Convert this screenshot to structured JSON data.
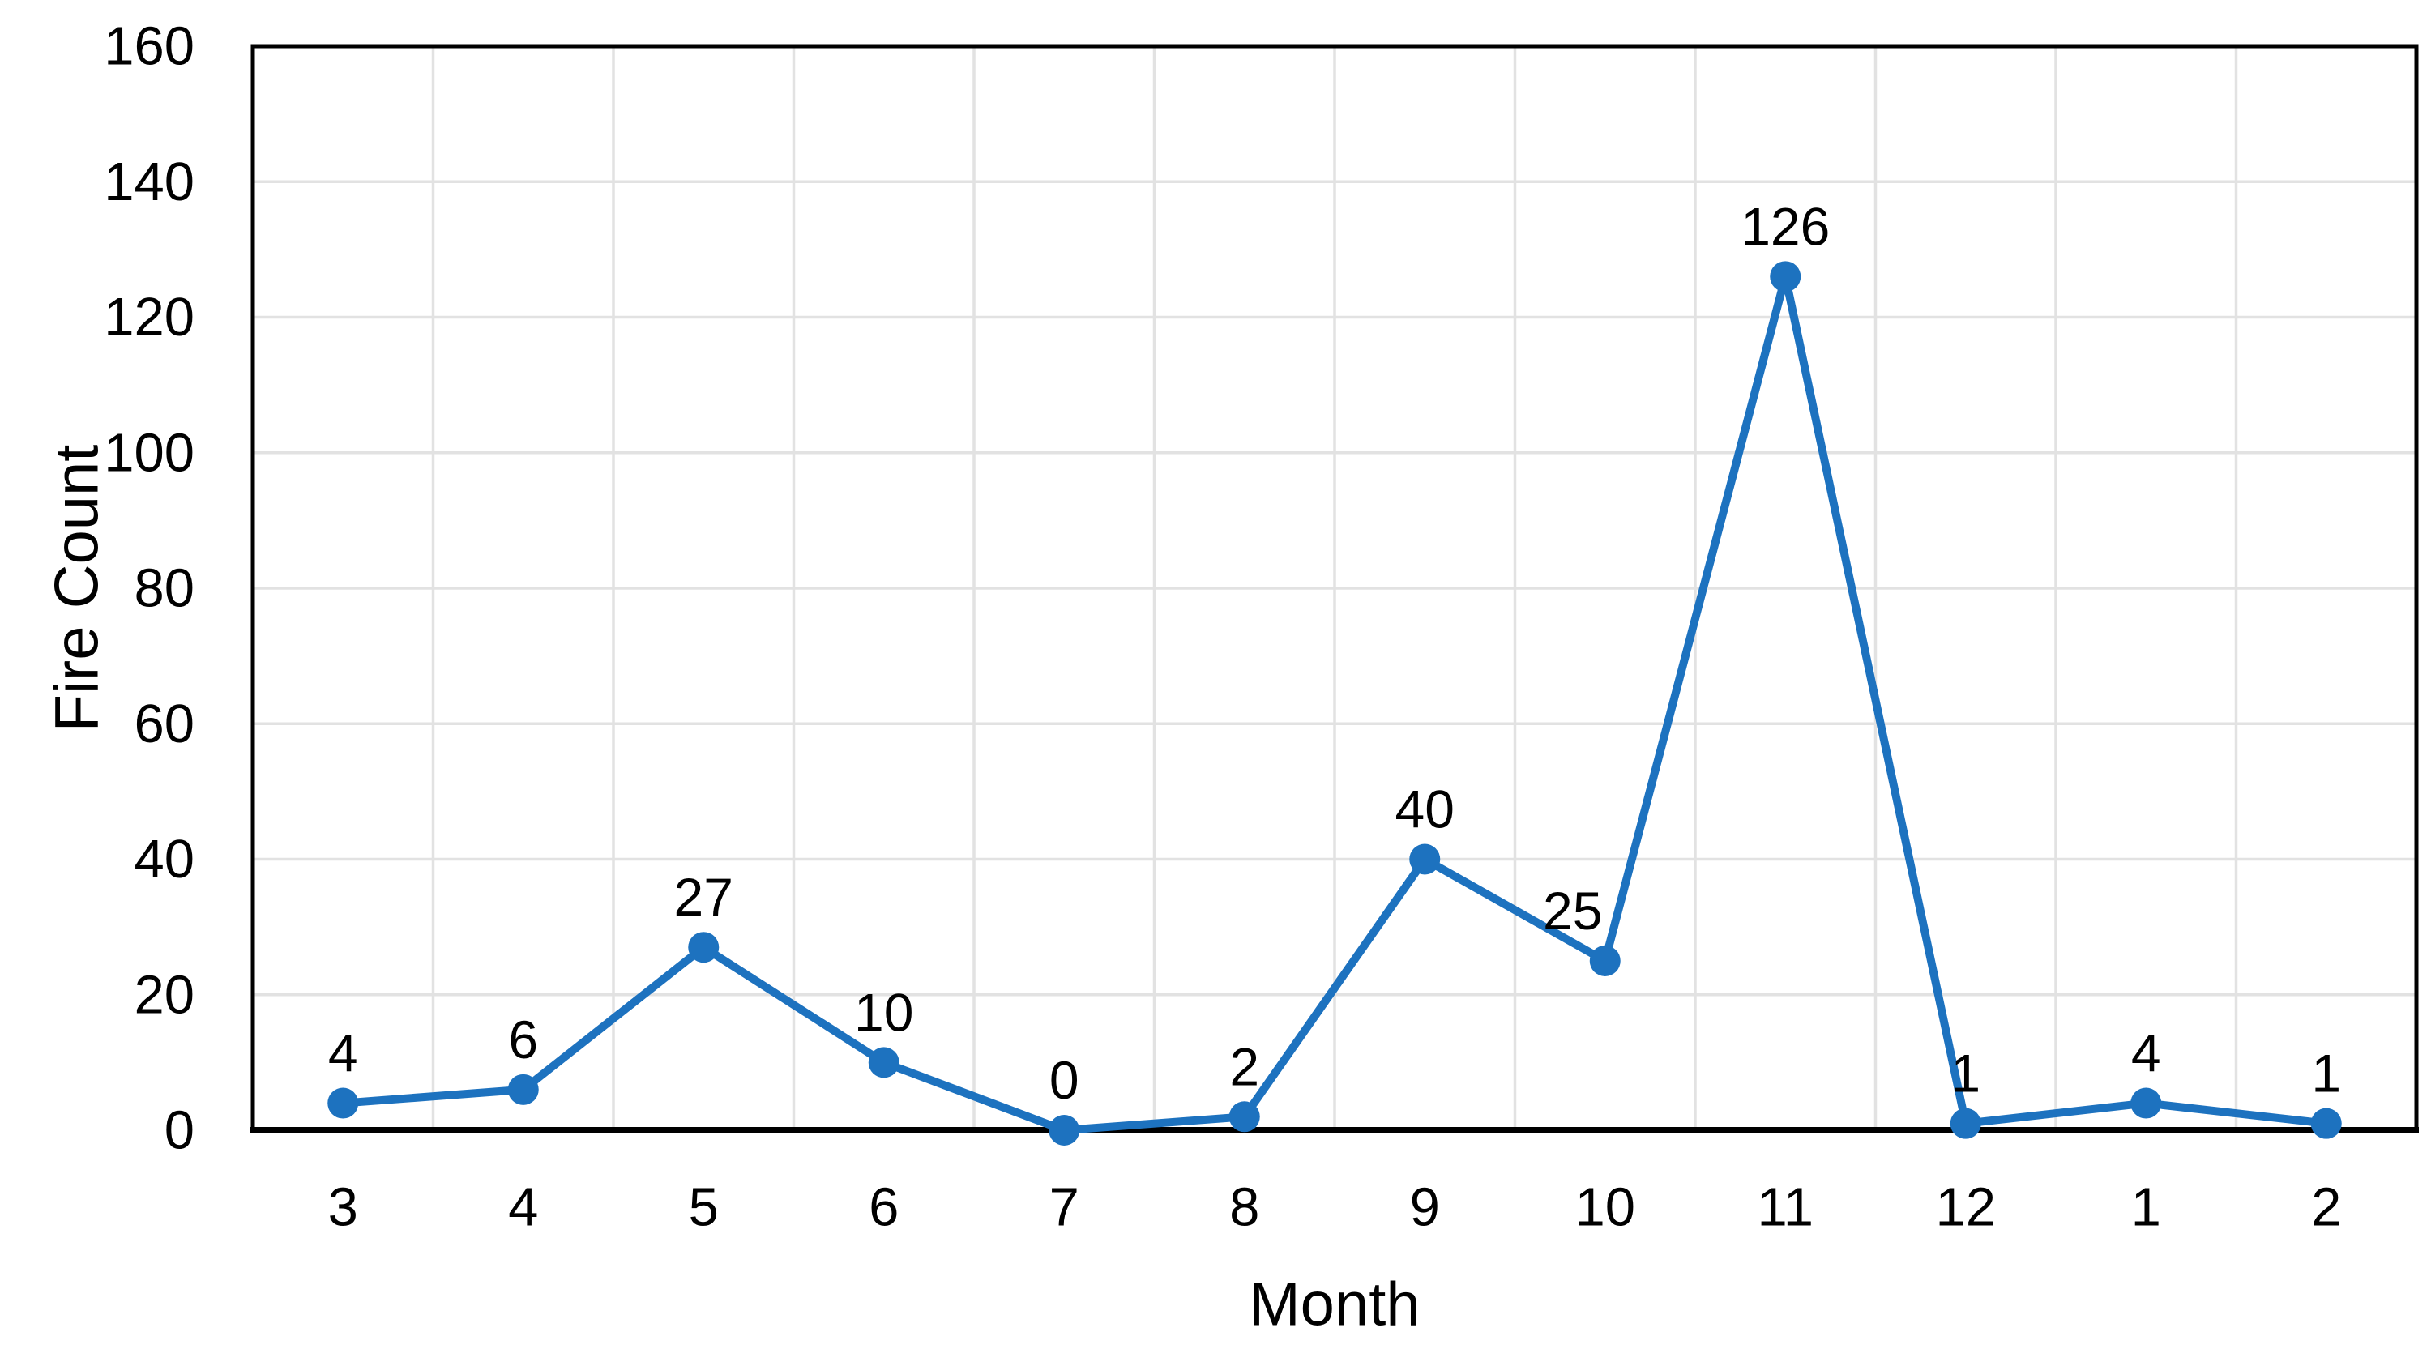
{
  "chart_data": {
    "type": "line",
    "title": "",
    "xlabel": "Month",
    "ylabel": "Fire Count",
    "categories": [
      "3",
      "4",
      "5",
      "6",
      "7",
      "8",
      "9",
      "10",
      "11",
      "12",
      "1",
      "2"
    ],
    "series": [
      {
        "name": "Fire Count",
        "values": [
          4,
          6,
          27,
          10,
          0,
          2,
          40,
          25,
          126,
          1,
          4,
          1
        ]
      }
    ],
    "data_labels": [
      "4",
      "6",
      "27",
      "10",
      "0",
      "2",
      "40",
      "25",
      "126",
      "1",
      "4",
      "1"
    ],
    "ylim": [
      0,
      160
    ],
    "ytick_step": 20,
    "yticks": [
      0,
      20,
      40,
      60,
      80,
      100,
      120,
      140,
      160
    ],
    "grid": true,
    "legend": "none",
    "colors": {
      "line": "#1D72BF",
      "marker": "#1D72BF",
      "gridline": "#E2E2E2",
      "axis": "#000000",
      "text": "#000000",
      "background": "#FFFFFF"
    },
    "layout_hints": {
      "marker_shape": "circle",
      "label_position": "above",
      "gridlines_vertical": "category-boundaries",
      "plot_border": "full-box",
      "label_offsets": [
        {
          "index": 7,
          "dx": -40
        }
      ]
    }
  }
}
